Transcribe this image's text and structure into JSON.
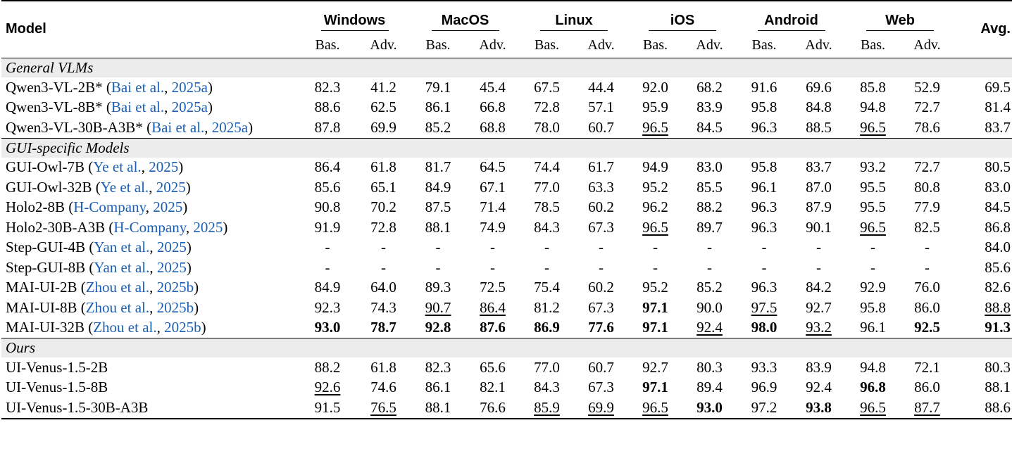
{
  "header": {
    "model": "Model",
    "groups": [
      "Windows",
      "MacOS",
      "Linux",
      "iOS",
      "Android",
      "Web"
    ],
    "sub_basic": "Bas.",
    "sub_advanced": "Adv.",
    "avg": "Avg."
  },
  "sections": [
    {
      "title": "General VLMs",
      "rows": [
        {
          "name": "Qwen3-VL-2B*",
          "cite_author": "Bai et al.",
          "cite_year": "2025a",
          "values": [
            "82.3",
            "41.2",
            "79.1",
            "45.4",
            "67.5",
            "44.4",
            "92.0",
            "68.2",
            "91.6",
            "69.6",
            "85.8",
            "52.9",
            "69.5"
          ],
          "bold": [],
          "underline": []
        },
        {
          "name": "Qwen3-VL-8B*",
          "cite_author": "Bai et al.",
          "cite_year": "2025a",
          "values": [
            "88.6",
            "62.5",
            "86.1",
            "66.8",
            "72.8",
            "57.1",
            "95.9",
            "83.9",
            "95.8",
            "84.8",
            "94.8",
            "72.7",
            "81.4"
          ],
          "bold": [],
          "underline": []
        },
        {
          "name": "Qwen3-VL-30B-A3B*",
          "cite_author": "Bai et al.",
          "cite_year": "2025a",
          "values": [
            "87.8",
            "69.9",
            "85.2",
            "68.8",
            "78.0",
            "60.7",
            "96.5",
            "84.5",
            "96.3",
            "88.5",
            "96.5",
            "78.6",
            "83.7"
          ],
          "bold": [],
          "underline": [
            6,
            10
          ]
        }
      ]
    },
    {
      "title": "GUI-specific Models",
      "rows": [
        {
          "name": "GUI-Owl-7B",
          "cite_author": "Ye et al.",
          "cite_year": "2025",
          "values": [
            "86.4",
            "61.8",
            "81.7",
            "64.5",
            "74.4",
            "61.7",
            "94.9",
            "83.0",
            "95.8",
            "83.7",
            "93.2",
            "72.7",
            "80.5"
          ],
          "bold": [],
          "underline": []
        },
        {
          "name": "GUI-Owl-32B",
          "cite_author": "Ye et al.",
          "cite_year": "2025",
          "values": [
            "85.6",
            "65.1",
            "84.9",
            "67.1",
            "77.0",
            "63.3",
            "95.2",
            "85.5",
            "96.1",
            "87.0",
            "95.5",
            "80.8",
            "83.0"
          ],
          "bold": [],
          "underline": []
        },
        {
          "name": "Holo2-8B",
          "cite_author": "H-Company",
          "cite_year": "2025",
          "values": [
            "90.8",
            "70.2",
            "87.5",
            "71.4",
            "78.5",
            "60.2",
            "96.2",
            "88.2",
            "96.3",
            "87.9",
            "95.5",
            "77.9",
            "84.5"
          ],
          "bold": [],
          "underline": []
        },
        {
          "name": "Holo2-30B-A3B",
          "cite_author": "H-Company",
          "cite_year": "2025",
          "values": [
            "91.9",
            "72.8",
            "88.1",
            "74.9",
            "84.3",
            "67.3",
            "96.5",
            "89.7",
            "96.3",
            "90.1",
            "96.5",
            "82.5",
            "86.8"
          ],
          "bold": [],
          "underline": [
            6,
            10
          ]
        },
        {
          "name": "Step-GUI-4B",
          "cite_author": "Yan et al.",
          "cite_year": "2025",
          "values": [
            "-",
            "-",
            "-",
            "-",
            "-",
            "-",
            "-",
            "-",
            "-",
            "-",
            "-",
            "-",
            "84.0"
          ],
          "bold": [],
          "underline": []
        },
        {
          "name": "Step-GUI-8B",
          "cite_author": "Yan et al.",
          "cite_year": "2025",
          "values": [
            "-",
            "-",
            "-",
            "-",
            "-",
            "-",
            "-",
            "-",
            "-",
            "-",
            "-",
            "-",
            "85.6"
          ],
          "bold": [],
          "underline": []
        },
        {
          "name": "MAI-UI-2B",
          "cite_author": "Zhou et al.",
          "cite_year": "2025b",
          "values": [
            "84.9",
            "64.0",
            "89.3",
            "72.5",
            "75.4",
            "60.2",
            "95.2",
            "85.2",
            "96.3",
            "84.2",
            "92.9",
            "76.0",
            "82.6"
          ],
          "bold": [],
          "underline": []
        },
        {
          "name": "MAI-UI-8B",
          "cite_author": "Zhou et al.",
          "cite_year": "2025b",
          "values": [
            "92.3",
            "74.3",
            "90.7",
            "86.4",
            "81.2",
            "67.3",
            "97.1",
            "90.0",
            "97.5",
            "92.7",
            "95.8",
            "86.0",
            "88.8"
          ],
          "bold": [
            6
          ],
          "underline": [
            2,
            3,
            8,
            12
          ]
        },
        {
          "name": "MAI-UI-32B",
          "cite_author": "Zhou et al.",
          "cite_year": "2025b",
          "values": [
            "93.0",
            "78.7",
            "92.8",
            "87.6",
            "86.9",
            "77.6",
            "97.1",
            "92.4",
            "98.0",
            "93.2",
            "96.1",
            "92.5",
            "91.3"
          ],
          "bold": [
            0,
            1,
            2,
            3,
            4,
            5,
            6,
            8,
            11,
            12
          ],
          "underline": [
            7,
            9
          ]
        }
      ]
    },
    {
      "title": "Ours",
      "rows": [
        {
          "name": "UI-Venus-1.5-2B",
          "cite_author": "",
          "cite_year": "",
          "values": [
            "88.2",
            "61.8",
            "82.3",
            "65.6",
            "77.0",
            "60.7",
            "92.7",
            "80.3",
            "93.3",
            "83.9",
            "94.8",
            "72.1",
            "80.3"
          ],
          "bold": [],
          "underline": []
        },
        {
          "name": "UI-Venus-1.5-8B",
          "cite_author": "",
          "cite_year": "",
          "values": [
            "92.6",
            "74.6",
            "86.1",
            "82.1",
            "84.3",
            "67.3",
            "97.1",
            "89.4",
            "96.9",
            "92.4",
            "96.8",
            "86.0",
            "88.1"
          ],
          "bold": [
            6,
            10
          ],
          "underline": [
            0
          ]
        },
        {
          "name": "UI-Venus-1.5-30B-A3B",
          "cite_author": "",
          "cite_year": "",
          "values": [
            "91.5",
            "76.5",
            "88.1",
            "76.6",
            "85.9",
            "69.9",
            "96.5",
            "93.0",
            "97.2",
            "93.8",
            "96.5",
            "87.7",
            "88.6"
          ],
          "bold": [
            7,
            9
          ],
          "underline": [
            1,
            4,
            5,
            6,
            10,
            11
          ]
        }
      ]
    }
  ]
}
